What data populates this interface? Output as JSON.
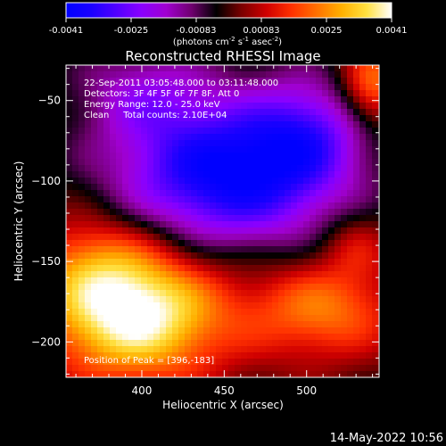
{
  "chart_data": {
    "type": "heatmap",
    "title": "Reconstructed RHESSI Image",
    "xlabel": "Heliocentric X (arcsec)",
    "ylabel": "Heliocentric Y (arcsec)",
    "xlim": [
      354,
      544
    ],
    "ylim": [
      -222,
      -28
    ],
    "xticks": [
      400,
      450,
      500
    ],
    "yticks": [
      -50,
      -100,
      -150,
      -200
    ],
    "colorbar": {
      "min": -0.0041,
      "max": 0.0041,
      "ticks": [
        "-0.0041",
        "-0.0025",
        "-0.00083",
        "0.00083",
        "0.0025",
        "0.0041"
      ],
      "label": "(photons cm",
      "label_sup1": "-2",
      "label_mid": " s",
      "label_sup2": "-1",
      "label_mid2": " asec",
      "label_sup3": "-2",
      "label_end": ")",
      "colors": [
        "#0000ff",
        "#1a00ff",
        "#5000ff",
        "#8a00ff",
        "#a000d0",
        "#700070",
        "#000000",
        "#7a0000",
        "#d00000",
        "#ff3000",
        "#ff7000",
        "#ffb000",
        "#ffe040",
        "#ffffff"
      ]
    },
    "annotations": [
      "22-Sep-2011 03:05:48.000 to 03:11:48.000",
      "Detectors: 3F 4F 5F 6F 7F 8F, Att 0",
      "Energy Range: 12.0 - 25.0 keV",
      "Clean     Total counts: 2.10E+04"
    ],
    "peak_label": "Position of Peak = [396,-183]",
    "features": [
      {
        "kind": "maximum",
        "x": 396,
        "y": -183,
        "value": 0.0041
      },
      {
        "kind": "minimum",
        "x": 452,
        "y": -95,
        "value": -0.0041
      }
    ]
  },
  "footer_timestamp": "14-May-2022 10:56"
}
